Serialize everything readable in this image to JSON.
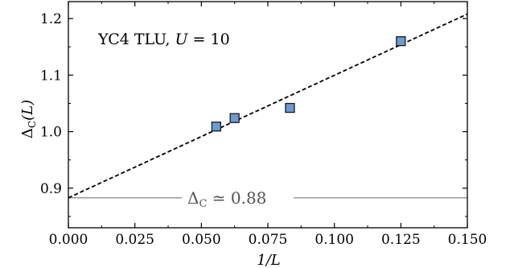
{
  "chart_data": {
    "type": "scatter",
    "xlabel": "1/L",
    "ylabel_main": "Δ",
    "ylabel_sub": "C",
    "ylabel_arg": "(L)",
    "xlim": [
      0.0,
      0.15
    ],
    "ylim": [
      0.83,
      1.23
    ],
    "x_ticks": [
      0.0,
      0.025,
      0.05,
      0.075,
      0.1,
      0.125,
      0.15
    ],
    "x_tick_labels": [
      "0.000",
      "0.025",
      "0.050",
      "0.075",
      "0.100",
      "0.125",
      "0.150"
    ],
    "y_ticks": [
      0.9,
      1.0,
      1.1,
      1.2
    ],
    "y_tick_labels": [
      "0.9",
      "1.0",
      "1.1",
      "1.2"
    ],
    "annotation": {
      "prefix": "YC4 TLU, ",
      "var": "U",
      "suffix": " = 10"
    },
    "series": [
      {
        "marker": "square",
        "color": "#6b9bd1",
        "edge_color": "#1a1a1a",
        "x": [
          0.0556,
          0.0625,
          0.0833,
          0.125
        ],
        "y": [
          1.009,
          1.024,
          1.042,
          1.16
        ]
      }
    ],
    "fit_line": {
      "style": "dashed",
      "color": "#000000",
      "x": [
        0.0,
        0.15
      ],
      "y": [
        0.883,
        1.208
      ]
    },
    "reference_line": {
      "y": 0.883,
      "color": "#999999",
      "label_main": "Δ",
      "label_sub": "C",
      "label_rest": " ≃ 0.88"
    },
    "grid": false
  }
}
